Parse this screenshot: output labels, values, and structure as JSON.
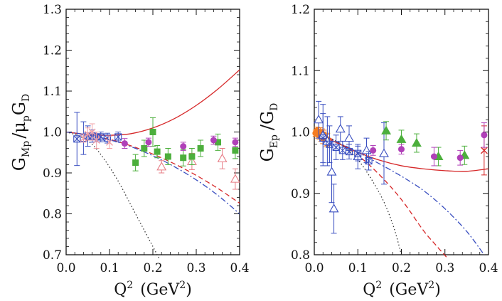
{
  "chart_data": [
    {
      "type": "scatter",
      "panel": "left",
      "title": "",
      "ylabel": {
        "main1": "G",
        "sub1": "Mp",
        "slash": "/",
        "mu": "μ",
        "sub2": "p",
        "main2": "G",
        "sub3": "D"
      },
      "xlabel": {
        "q": "Q",
        "pow": "2",
        "rest": "(GeV",
        "pow2": "2",
        "close": ")"
      },
      "xlim": [
        0.0,
        0.4
      ],
      "ylim": [
        0.7,
        1.3
      ],
      "xticks": [
        "0.0",
        "0.1",
        "0.2",
        "0.3",
        "0.4"
      ],
      "yticks": [
        "0.7",
        "0.8",
        "0.9",
        "1.0",
        "1.1",
        "1.2",
        "1.3"
      ],
      "curves": [
        {
          "name": "solid fit",
          "color": "#d62728",
          "style": "solid",
          "x": [
            0.0,
            0.05,
            0.1,
            0.15,
            0.2,
            0.25,
            0.3,
            0.35,
            0.4
          ],
          "y": [
            1.0,
            0.994,
            0.992,
            0.996,
            1.01,
            1.033,
            1.065,
            1.105,
            1.152
          ]
        },
        {
          "name": "dashed",
          "color": "#d62728",
          "style": "dashed",
          "x": [
            0.0,
            0.05,
            0.1,
            0.15,
            0.2,
            0.25,
            0.3,
            0.35,
            0.4
          ],
          "y": [
            1.0,
            0.993,
            0.982,
            0.966,
            0.946,
            0.922,
            0.894,
            0.862,
            0.826
          ]
        },
        {
          "name": "dash-dot",
          "color": "#3a4fc0",
          "style": "dashdot",
          "x": [
            0.0,
            0.05,
            0.1,
            0.15,
            0.2,
            0.25,
            0.3,
            0.35,
            0.4
          ],
          "y": [
            1.0,
            0.993,
            0.981,
            0.964,
            0.942,
            0.915,
            0.883,
            0.845,
            0.8
          ]
        },
        {
          "name": "dotted",
          "color": "#333333",
          "style": "dotted",
          "x": [
            0.0,
            0.03,
            0.06,
            0.09,
            0.12,
            0.15,
            0.18,
            0.21,
            0.215
          ],
          "y": [
            1.0,
            0.99,
            0.97,
            0.93,
            0.88,
            0.82,
            0.76,
            0.7,
            0.69
          ]
        }
      ],
      "series": [
        {
          "name": "blue crossed squares",
          "marker": "xsquare",
          "color": "#3a4fc0",
          "points": [
            [
              0.025,
              0.983,
              0.065
            ],
            [
              0.04,
              0.985,
              0.04
            ],
            [
              0.05,
              0.99,
              0.025
            ],
            [
              0.06,
              0.99,
              0.015
            ],
            [
              0.07,
              0.988,
              0.012
            ],
            [
              0.08,
              0.988,
              0.012
            ],
            [
              0.095,
              0.985,
              0.012
            ],
            [
              0.12,
              0.988,
              0.012
            ]
          ]
        },
        {
          "name": "pink crosses",
          "marker": "cross",
          "color": "#f2a0a6",
          "points": [
            [
              0.04,
              0.985,
              0.01
            ],
            [
              0.05,
              0.995,
              0.015
            ],
            [
              0.06,
              1.0,
              0.02
            ],
            [
              0.07,
              0.98,
              0.02
            ],
            [
              0.1,
              0.975,
              0.015
            ]
          ]
        },
        {
          "name": "pink open triangles",
          "marker": "opentriangle",
          "color": "#e77c85",
          "points": [
            [
              0.22,
              0.915,
              0.015
            ],
            [
              0.29,
              0.928,
              0.02
            ],
            [
              0.36,
              0.935,
              0.025
            ],
            [
              0.39,
              0.885,
              0.025
            ]
          ]
        },
        {
          "name": "green filled squares",
          "marker": "square",
          "color": "#4caf3c",
          "points": [
            [
              0.16,
              0.925,
              0.02
            ],
            [
              0.18,
              0.96,
              0.02
            ],
            [
              0.2,
              1.0,
              0.035
            ],
            [
              0.21,
              0.952,
              0.015
            ],
            [
              0.235,
              0.94,
              0.02
            ],
            [
              0.27,
              0.937,
              0.02
            ],
            [
              0.29,
              0.94,
              0.02
            ],
            [
              0.31,
              0.96,
              0.02
            ],
            [
              0.35,
              0.975,
              0.02
            ],
            [
              0.39,
              0.955,
              0.02
            ]
          ]
        },
        {
          "name": "magenta circles",
          "marker": "circle",
          "color": "#b040b8",
          "points": [
            [
              0.135,
              0.972,
              0.012
            ],
            [
              0.19,
              0.975,
              0.01
            ],
            [
              0.27,
              0.965,
              0.01
            ],
            [
              0.34,
              0.98,
              0.01
            ],
            [
              0.39,
              0.975,
              0.01
            ]
          ]
        }
      ]
    },
    {
      "type": "scatter",
      "panel": "right",
      "title": "",
      "ylabel": {
        "main1": "G",
        "sub1": "Ep",
        "slash": "/",
        "main2": "G",
        "sub3": "D"
      },
      "xlabel": {
        "q": "Q",
        "pow": "2",
        "rest": "(GeV",
        "pow2": "2",
        "close": ")"
      },
      "xlim": [
        0.0,
        0.4
      ],
      "ylim": [
        0.8,
        1.2
      ],
      "xticks": [
        "0.0",
        "0.1",
        "0.2",
        "0.3",
        "0.4"
      ],
      "yticks": [
        "0.8",
        "0.9",
        "1.0",
        "1.1",
        "1.2"
      ],
      "curves": [
        {
          "name": "solid fit",
          "color": "#d62728",
          "style": "solid",
          "x": [
            0.0,
            0.05,
            0.1,
            0.15,
            0.2,
            0.25,
            0.3,
            0.35,
            0.4
          ],
          "y": [
            1.0,
            0.983,
            0.967,
            0.954,
            0.945,
            0.94,
            0.937,
            0.936,
            0.94
          ]
        },
        {
          "name": "dashed",
          "color": "#d62728",
          "style": "dashed",
          "x": [
            0.0,
            0.05,
            0.1,
            0.15,
            0.2,
            0.25,
            0.28,
            0.305
          ],
          "y": [
            1.0,
            0.985,
            0.962,
            0.93,
            0.89,
            0.84,
            0.815,
            0.795
          ]
        },
        {
          "name": "dash-dot",
          "color": "#3a4fc0",
          "style": "dashdot",
          "x": [
            0.0,
            0.05,
            0.1,
            0.15,
            0.2,
            0.25,
            0.3,
            0.35,
            0.39
          ],
          "y": [
            1.0,
            0.985,
            0.967,
            0.948,
            0.928,
            0.905,
            0.875,
            0.838,
            0.8
          ]
        },
        {
          "name": "dotted",
          "color": "#333333",
          "style": "dotted",
          "x": [
            0.0,
            0.05,
            0.1,
            0.15,
            0.18,
            0.2
          ],
          "y": [
            1.0,
            0.985,
            0.955,
            0.9,
            0.85,
            0.8
          ]
        }
      ],
      "series": [
        {
          "name": "orange dense points",
          "marker": "circle",
          "color": "#f57c20",
          "points": [
            [
              0.003,
              0.998,
              0.005
            ],
            [
              0.006,
              1.002,
              0.006
            ],
            [
              0.008,
              0.996,
              0.006
            ],
            [
              0.01,
              1.0,
              0.007
            ],
            [
              0.012,
              0.995,
              0.007
            ],
            [
              0.014,
              0.999,
              0.008
            ],
            [
              0.016,
              0.993,
              0.008
            ],
            [
              0.018,
              0.997,
              0.008
            ],
            [
              0.02,
              0.99,
              0.009
            ],
            [
              0.022,
              0.994,
              0.009
            ],
            [
              0.025,
              0.99,
              0.01
            ],
            [
              0.028,
              0.986,
              0.01
            ],
            [
              0.03,
              0.988,
              0.01
            ]
          ]
        },
        {
          "name": "blue open triangles",
          "marker": "opentriangle",
          "color": "#3a4fc0",
          "points": [
            [
              0.01,
              1.02,
              0.03
            ],
            [
              0.02,
              0.995,
              0.05
            ],
            [
              0.03,
              0.985,
              0.04
            ],
            [
              0.04,
              0.935,
              0.05
            ],
            [
              0.045,
              0.875,
              0.04
            ],
            [
              0.06,
              1.005,
              0.02
            ],
            [
              0.08,
              0.99,
              0.02
            ],
            [
              0.1,
              0.96,
              0.02
            ],
            [
              0.12,
              0.97,
              0.02
            ],
            [
              0.16,
              0.965,
              0.05
            ]
          ]
        },
        {
          "name": "blue crossed squares",
          "marker": "xsquare",
          "color": "#3a4fc0",
          "points": [
            [
              0.02,
              0.99,
              0.04
            ],
            [
              0.035,
              0.98,
              0.03
            ],
            [
              0.05,
              0.975,
              0.02
            ],
            [
              0.065,
              0.97,
              0.015
            ],
            [
              0.08,
              0.968,
              0.012
            ],
            [
              0.1,
              0.965,
              0.012
            ],
            [
              0.125,
              0.953,
              0.015
            ]
          ]
        },
        {
          "name": "red crosses",
          "marker": "cross",
          "color": "#d62728",
          "points": [
            [
              0.39,
              0.97,
              0.04
            ]
          ]
        },
        {
          "name": "green filled triangles",
          "marker": "triangle",
          "color": "#4caf3c",
          "points": [
            [
              0.165,
              1.002,
              0.015
            ],
            [
              0.2,
              0.988,
              0.015
            ],
            [
              0.235,
              0.982,
              0.015
            ],
            [
              0.285,
              0.96,
              0.015
            ],
            [
              0.345,
              0.962,
              0.015
            ]
          ]
        },
        {
          "name": "magenta circles",
          "marker": "circle",
          "color": "#b040b8",
          "points": [
            [
              0.135,
              0.97,
              0.008
            ],
            [
              0.2,
              0.972,
              0.008
            ],
            [
              0.275,
              0.96,
              0.015
            ],
            [
              0.335,
              0.958,
              0.012
            ],
            [
              0.39,
              0.995,
              0.02
            ]
          ]
        }
      ]
    }
  ]
}
